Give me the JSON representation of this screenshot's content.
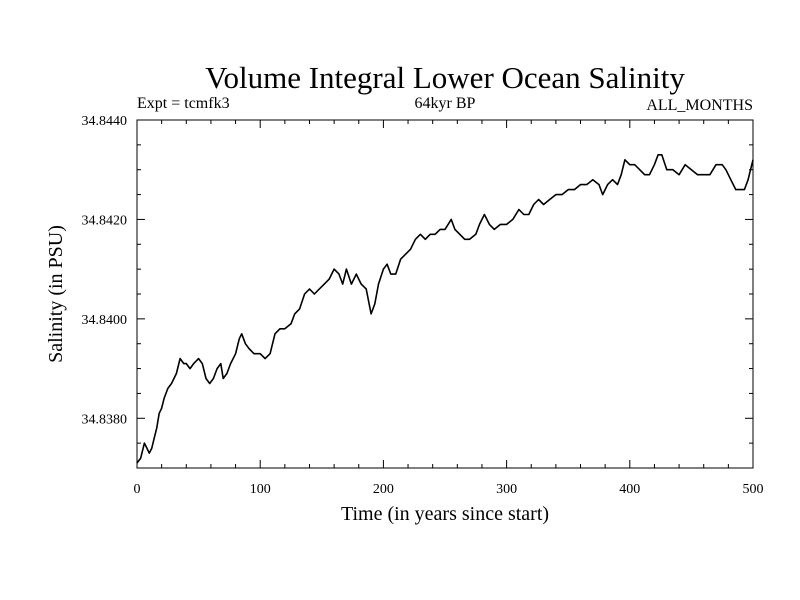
{
  "chart_data": {
    "type": "line",
    "title": "Volume Integral Lower Ocean Salinity",
    "subtitle_left": "Expt = tcmfk3",
    "subtitle_center": "64kyr BP",
    "subtitle_right": "ALL_MONTHS",
    "xlabel": "Time (in years since start)",
    "ylabel": "Salinity (in PSU)",
    "xlim": [
      0,
      500
    ],
    "ylim": [
      34.837,
      34.844
    ],
    "x_ticks": [
      0,
      100,
      200,
      300,
      400,
      500
    ],
    "x_tick_labels": [
      "0",
      "100",
      "200",
      "300",
      "400",
      "500"
    ],
    "y_ticks": [
      34.838,
      34.84,
      34.842,
      34.844
    ],
    "y_tick_labels": [
      "34.8380",
      "34.8400",
      "34.8420",
      "34.8440"
    ],
    "grid": false,
    "color": "#000000",
    "series": [
      {
        "x": [
          0,
          3,
          6,
          8,
          10,
          12,
          14,
          16,
          18,
          20,
          22,
          25,
          28,
          32,
          35,
          38,
          40,
          43,
          46,
          50,
          53,
          56,
          59,
          62,
          65,
          68,
          70,
          73,
          76,
          80,
          83,
          85,
          88,
          91,
          95,
          100,
          104,
          108,
          112,
          116,
          120,
          125,
          128,
          132,
          136,
          140,
          144,
          148,
          152,
          156,
          160,
          164,
          167,
          170,
          174,
          178,
          182,
          186,
          190,
          193,
          196,
          200,
          203,
          206,
          210,
          214,
          218,
          222,
          226,
          230,
          234,
          238,
          242,
          246,
          250,
          255,
          258,
          262,
          266,
          270,
          275,
          278,
          282,
          286,
          290,
          295,
          300,
          305,
          310,
          314,
          318,
          322,
          326,
          330,
          335,
          340,
          345,
          350,
          355,
          360,
          365,
          370,
          375,
          378,
          382,
          386,
          390,
          393,
          396,
          400,
          404,
          408,
          412,
          416,
          420,
          423,
          426,
          430,
          435,
          440,
          445,
          450,
          455,
          460,
          465,
          470,
          475,
          478,
          482,
          486,
          490,
          493,
          496,
          500
        ],
        "y": [
          34.8371,
          34.8372,
          34.8375,
          34.8374,
          34.8373,
          34.8374,
          34.8376,
          34.8378,
          34.8381,
          34.8382,
          34.8384,
          34.8386,
          34.8387,
          34.8389,
          34.8392,
          34.8391,
          34.8391,
          34.839,
          34.8391,
          34.8392,
          34.8391,
          34.8388,
          34.8387,
          34.8388,
          34.839,
          34.8391,
          34.8388,
          34.8389,
          34.8391,
          34.8393,
          34.8396,
          34.8397,
          34.8395,
          34.8394,
          34.8393,
          34.8393,
          34.8392,
          34.8393,
          34.8397,
          34.8398,
          34.8398,
          34.8399,
          34.8401,
          34.8402,
          34.8405,
          34.8406,
          34.8405,
          34.8406,
          34.8407,
          34.8408,
          34.841,
          34.8409,
          34.8407,
          34.841,
          34.8407,
          34.8409,
          34.8407,
          34.8406,
          34.8401,
          34.8403,
          34.8407,
          34.841,
          34.8411,
          34.8409,
          34.8409,
          34.8412,
          34.8413,
          34.8414,
          34.8416,
          34.8417,
          34.8416,
          34.8417,
          34.8417,
          34.8418,
          34.8418,
          34.842,
          34.8418,
          34.8417,
          34.8416,
          34.8416,
          34.8417,
          34.8419,
          34.8421,
          34.8419,
          34.8418,
          34.8419,
          34.8419,
          34.842,
          34.8422,
          34.8421,
          34.8421,
          34.8423,
          34.8424,
          34.8423,
          34.8424,
          34.8425,
          34.8425,
          34.8426,
          34.8426,
          34.8427,
          34.8427,
          34.8428,
          34.8427,
          34.8425,
          34.8427,
          34.8428,
          34.8427,
          34.8429,
          34.8432,
          34.8431,
          34.8431,
          34.843,
          34.8429,
          34.8429,
          34.8431,
          34.8433,
          34.8433,
          34.843,
          34.843,
          34.8429,
          34.8431,
          34.843,
          34.8429,
          34.8429,
          34.8429,
          34.8431,
          34.8431,
          34.843,
          34.8428,
          34.8426,
          34.8426,
          34.8426,
          34.8428,
          34.8432
        ]
      }
    ]
  }
}
